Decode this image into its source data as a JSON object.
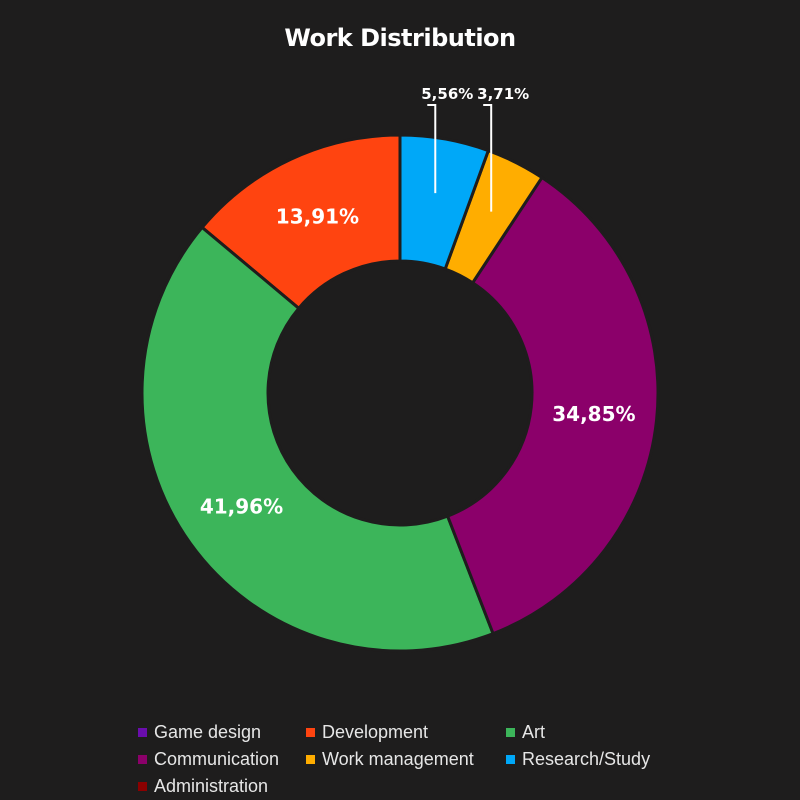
{
  "chart_data": {
    "type": "pie",
    "title": "Work Distribution",
    "donut": true,
    "categories": [
      "Game design",
      "Development",
      "Art",
      "Communication",
      "Work management",
      "Research/Study",
      "Administration"
    ],
    "values": [
      0,
      13.91,
      41.96,
      34.85,
      3.71,
      5.56,
      0
    ],
    "labels": [
      "",
      "13,91%",
      "41,96%",
      "34,85%",
      "3,71%",
      "5,56%",
      ""
    ],
    "colors": [
      "#6a0dad",
      "#ff4410",
      "#3cb55a",
      "#8b006a",
      "#ffad00",
      "#00a8f8",
      "#8b0000"
    ],
    "legend_position": "bottom"
  }
}
